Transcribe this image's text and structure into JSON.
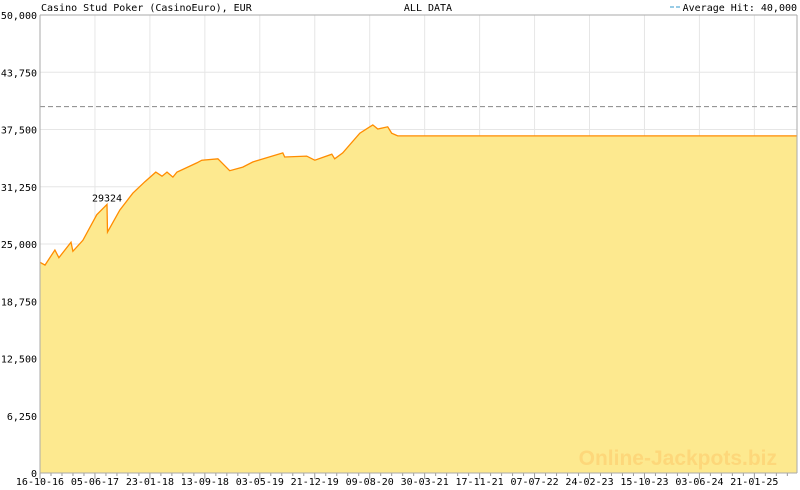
{
  "chart_data": {
    "type": "area",
    "title": "Casino Stud Poker (CasinoEuro), EUR",
    "subtitle": "ALL DATA",
    "legend": {
      "label": "Average Hit: 40,000",
      "value": 40000,
      "style": "dashed",
      "position": "top-right"
    },
    "ylim": [
      0,
      50000
    ],
    "yticks": [
      "0",
      "6,250",
      "12,500",
      "18,750",
      "25,000",
      "31,250",
      "37,500",
      "43,750",
      "50,000"
    ],
    "ytick_values": [
      0,
      6250,
      12500,
      18750,
      25000,
      31250,
      37500,
      43750,
      50000
    ],
    "xticks": [
      "16-10-16",
      "05-06-17",
      "23-01-18",
      "13-09-18",
      "03-05-19",
      "21-12-19",
      "09-08-20",
      "30-03-21",
      "17-11-21",
      "07-07-22",
      "24-02-23",
      "15-10-23",
      "03-06-24",
      "21-01-25"
    ],
    "xlim": [
      "2016-10-16",
      "2025-07-17"
    ],
    "grid": true,
    "annotation": {
      "text": "29324",
      "x": "2017-07-26",
      "y": 29324
    },
    "series": [
      {
        "x": [
          "2016-10-16",
          "2016-11-06",
          "2016-12-18",
          "2017-01-04",
          "2017-02-24",
          "2017-03-04",
          "2017-04-15",
          "2017-06-13",
          "2017-07-26",
          "2017-07-28",
          "2017-09-18",
          "2017-11-12",
          "2018-01-02",
          "2018-02-17",
          "2018-03-15",
          "2018-04-05",
          "2018-04-30",
          "2018-05-17",
          "2018-08-09",
          "2018-08-30",
          "2018-11-06",
          "2018-12-26",
          "2019-02-19",
          "2019-04-02",
          "2019-08-07",
          "2019-08-15",
          "2019-11-16",
          "2019-12-20",
          "2020-03-01",
          "2020-03-13",
          "2020-04-16",
          "2020-06-27",
          "2020-08-21",
          "2020-09-11",
          "2020-10-23",
          "2020-11-09",
          "2020-12-04",
          "2025-07-17"
        ],
        "y": [
          23000,
          22700,
          24350,
          23500,
          25200,
          24200,
          25400,
          28200,
          29324,
          26300,
          28700,
          30550,
          31800,
          32850,
          32400,
          32850,
          32300,
          32850,
          33850,
          34150,
          34300,
          33000,
          33400,
          33950,
          34950,
          34500,
          34600,
          34150,
          34800,
          34300,
          34950,
          37100,
          38000,
          37550,
          37800,
          37100,
          36800,
          36800
        ]
      }
    ],
    "colors": {
      "fill": "#fde98f",
      "line": "#ff8c00",
      "average": "#888888",
      "annotation": "#cc0000",
      "grid": "#e6e6e6",
      "legend_dash": "#3399cc"
    }
  },
  "watermark": "Online-Jackpots.biz"
}
